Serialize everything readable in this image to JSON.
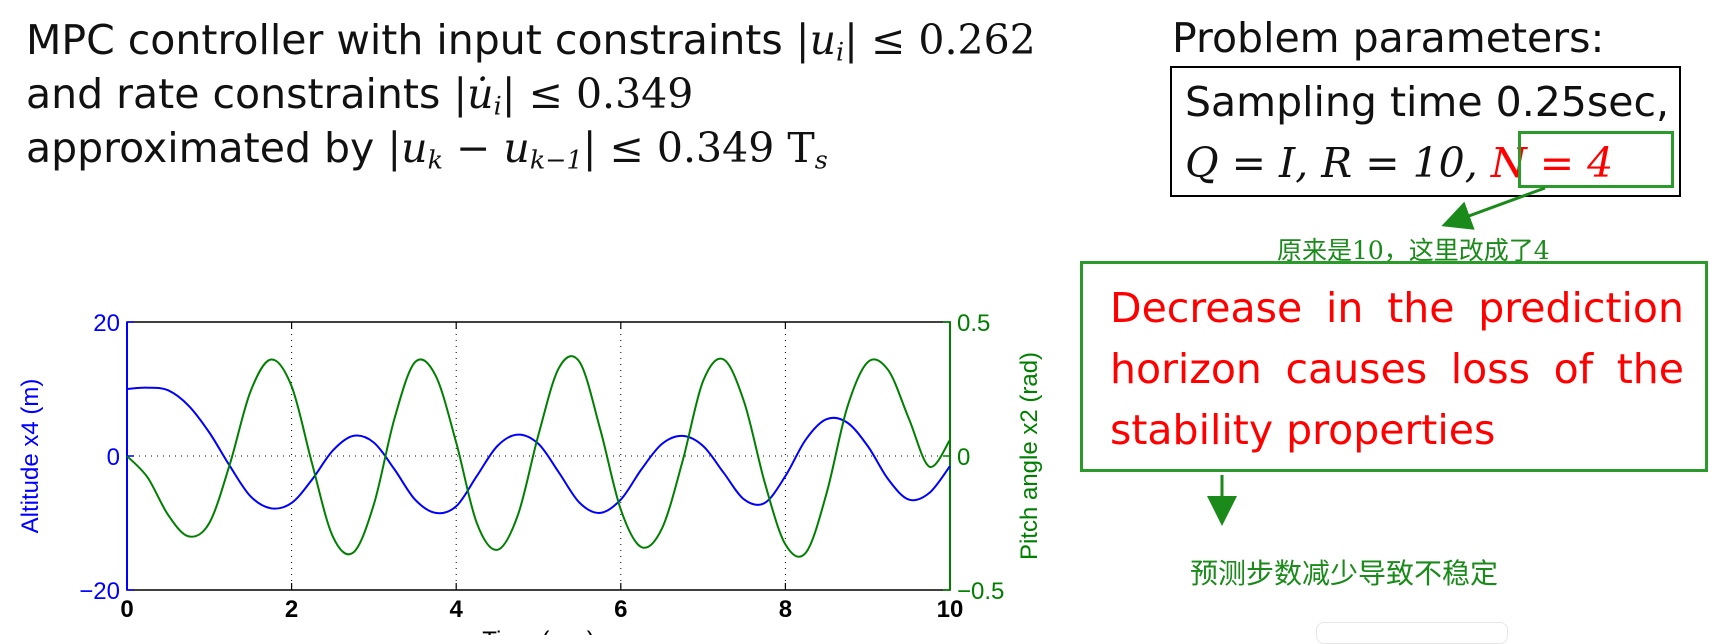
{
  "header": {
    "line1_text": "MPC controller with input constraints ",
    "line1_constraint": "|u",
    "line1_sub": "i",
    "line1_tail": "| ≤ 0.262",
    "line2_text": "and rate constraints ",
    "line2_constraint": "|u̇",
    "line2_sub": "i",
    "line2_tail": "| ≤ 0.349",
    "line3_text": "approximated by ",
    "line3_a": "|u",
    "line3_a_sub": "k",
    "line3_b": " − u",
    "line3_b_sub": "k−1",
    "line3_tail": "| ≤ 0.349 T",
    "line3_tail_sub": "s"
  },
  "params": {
    "title": "Problem parameters:",
    "line1": "Sampling time 0.25sec,",
    "line2_q": "Q = I, R = 10, ",
    "line2_n": "N = 4"
  },
  "annotations": {
    "changed_note": "原来是10，这里改成了4",
    "main_note": "Decrease in the prediction horizon causes loss of the stability properties",
    "bottom_note": "预测步数减少导致不稳定",
    "color": "#1a8a1a",
    "highlight_color": "#ff0000"
  },
  "chart_data": {
    "type": "line",
    "xlabel": "Time (sec)",
    "xlim": [
      0,
      10
    ],
    "xticks": [
      "0",
      "2",
      "4",
      "6",
      "8",
      "10"
    ],
    "grid": "dotted vertical at x ticks, dotted zero line",
    "y_left": {
      "label": "Altitude x4 (m)",
      "lim": [
        -20,
        20
      ],
      "ticks": [
        "20",
        "0",
        "−20"
      ],
      "color": "#0000ff"
    },
    "y_right": {
      "label": "Pitch angle x2 (rad)",
      "lim": [
        -0.5,
        0.5
      ],
      "ticks": [
        "0.5",
        "0",
        "−0.5"
      ],
      "color": "#008000"
    },
    "series": [
      {
        "axis": "left",
        "color": "#0000ff",
        "x": [
          0,
          0.25,
          0.5,
          0.75,
          1.0,
          1.25,
          1.5,
          1.75,
          2.0,
          2.25,
          2.5,
          2.75,
          3.0,
          3.25,
          3.5,
          3.75,
          4.0,
          4.25,
          4.5,
          4.75,
          5.0,
          5.25,
          5.5,
          5.75,
          6.0,
          6.25,
          6.5,
          6.75,
          7.0,
          7.25,
          7.5,
          7.75,
          8.0,
          8.25,
          8.5,
          8.75,
          9.0,
          9.25,
          9.5,
          9.75,
          10.0
        ],
        "values": [
          10,
          10.2,
          9.8,
          7.5,
          3.5,
          -1.5,
          -6.0,
          -7.8,
          -7.0,
          -3.5,
          0.8,
          3.0,
          2.0,
          -2.0,
          -6.5,
          -8.5,
          -7.5,
          -3.0,
          1.5,
          3.2,
          1.8,
          -2.5,
          -7.0,
          -8.5,
          -6.5,
          -2.0,
          1.8,
          3.0,
          1.5,
          -2.5,
          -6.5,
          -7.0,
          -3.0,
          2.5,
          5.5,
          5.0,
          1.5,
          -3.5,
          -6.5,
          -5.5,
          -1.5
        ]
      },
      {
        "axis": "right",
        "color": "#008000",
        "x": [
          0,
          0.25,
          0.5,
          0.75,
          1.0,
          1.25,
          1.5,
          1.75,
          2.0,
          2.25,
          2.5,
          2.75,
          3.0,
          3.25,
          3.5,
          3.75,
          4.0,
          4.25,
          4.5,
          4.75,
          5.0,
          5.25,
          5.5,
          5.75,
          6.0,
          6.25,
          6.5,
          6.75,
          7.0,
          7.25,
          7.5,
          7.75,
          8.0,
          8.25,
          8.5,
          8.75,
          9.0,
          9.25,
          9.5,
          9.75,
          10.0
        ],
        "values": [
          0,
          -0.08,
          -0.22,
          -0.3,
          -0.25,
          -0.03,
          0.24,
          0.36,
          0.26,
          -0.03,
          -0.3,
          -0.36,
          -0.18,
          0.14,
          0.35,
          0.3,
          0.05,
          -0.25,
          -0.35,
          -0.22,
          0.08,
          0.33,
          0.35,
          0.1,
          -0.2,
          -0.34,
          -0.27,
          -0.02,
          0.28,
          0.36,
          0.2,
          -0.1,
          -0.33,
          -0.36,
          -0.14,
          0.18,
          0.35,
          0.32,
          0.14,
          -0.04,
          0.06
        ]
      }
    ]
  }
}
